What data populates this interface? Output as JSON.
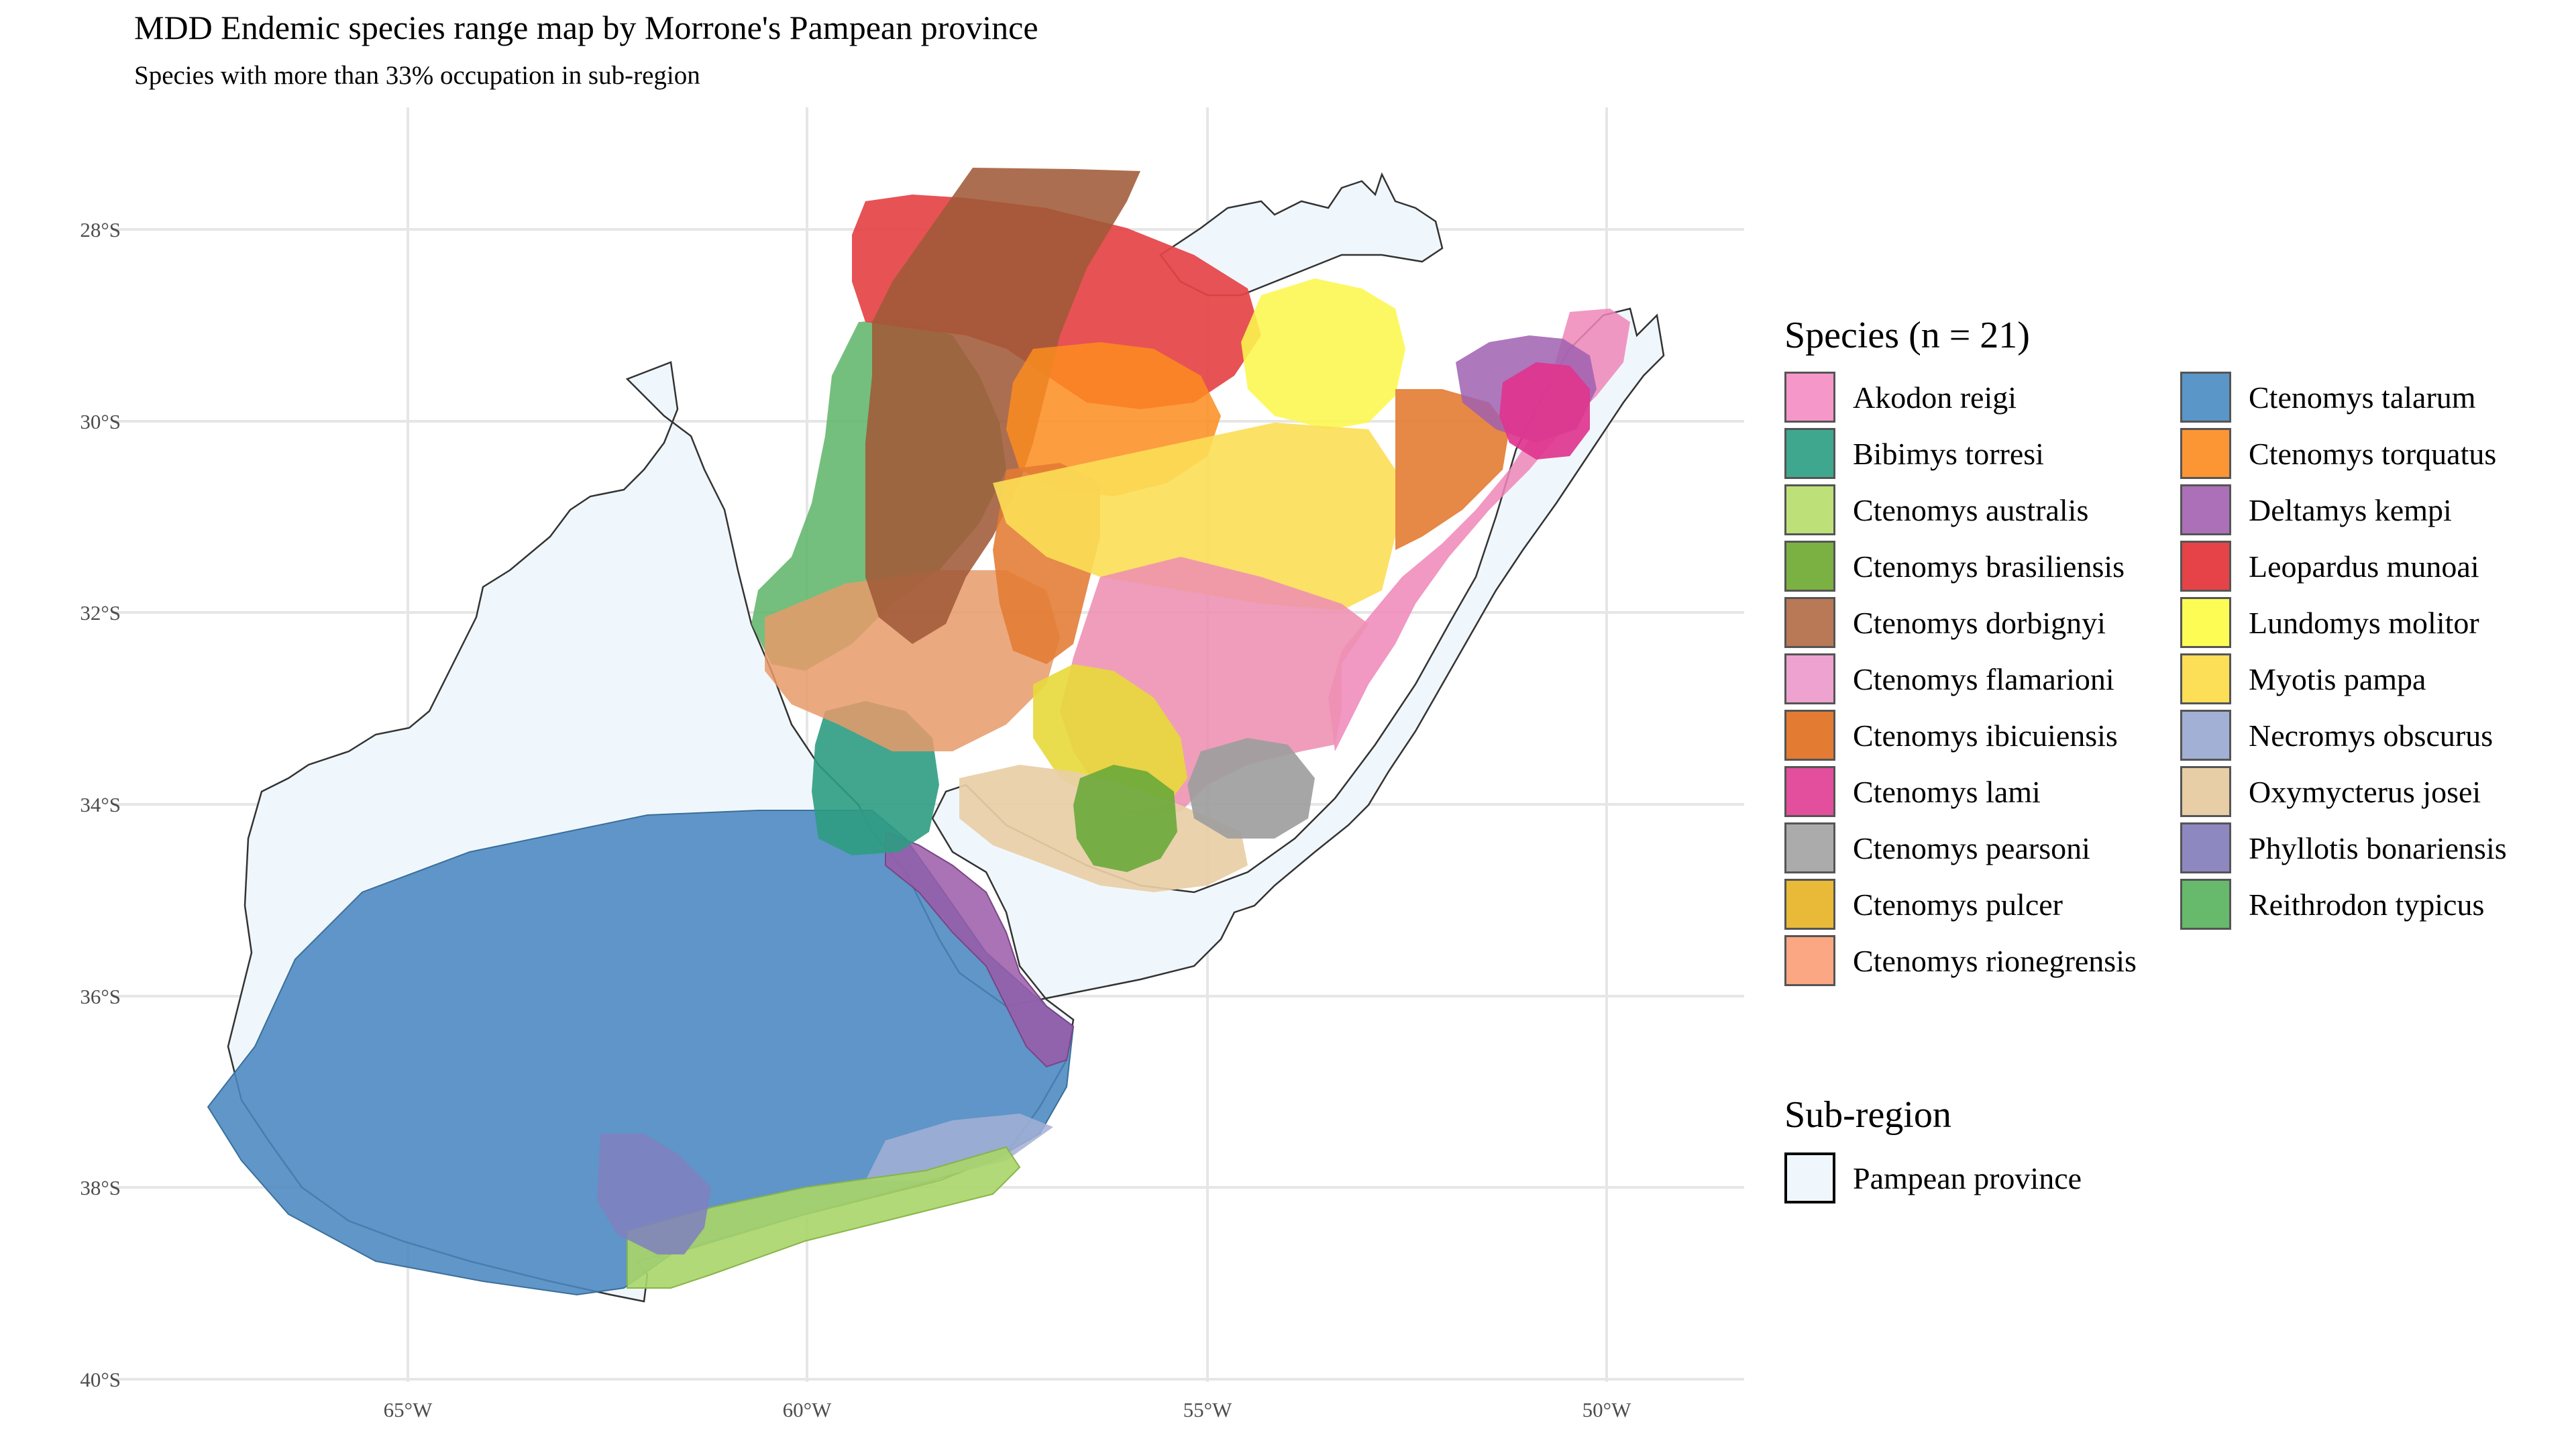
{
  "title": "MDD Endemic species range map by Morrone's Pampean province",
  "subtitle": "Species with more than 33% occupation in sub-region",
  "map": {
    "lat_axis": {
      "labels": [
        "28°S",
        "30°S",
        "32°S",
        "34°S",
        "36°S",
        "38°S",
        "40°S"
      ],
      "values": [
        -28,
        -30,
        -32,
        -34,
        -36,
        -38,
        -40
      ]
    },
    "lon_axis": {
      "labels": [
        "65°W",
        "60°W",
        "55°W",
        "50°W"
      ],
      "values": [
        -65,
        -60,
        -55,
        -50
      ]
    },
    "lat_range": [
      -40,
      -27
    ],
    "lon_range": [
      -68.5,
      -48.3
    ],
    "grid": true
  },
  "legend": {
    "species_title": "Species (n = 21)",
    "species": [
      {
        "name": "Akodon reigi",
        "color": "#F598C9"
      },
      {
        "name": "Bibimys torresi",
        "color": "#3FA78E"
      },
      {
        "name": "Ctenomys australis",
        "color": "#BDE078"
      },
      {
        "name": "Ctenomys brasiliensis",
        "color": "#7BB143"
      },
      {
        "name": "Ctenomys dorbignyi",
        "color": "#B97956"
      },
      {
        "name": "Ctenomys flamarioni",
        "color": "#EDA2CF"
      },
      {
        "name": "Ctenomys ibicuiensis",
        "color": "#E37B32"
      },
      {
        "name": "Ctenomys lami",
        "color": "#E34E9D"
      },
      {
        "name": "Ctenomys pearsoni",
        "color": "#ABABAB"
      },
      {
        "name": "Ctenomys pulcer",
        "color": "#E8BA37"
      },
      {
        "name": "Ctenomys rionegrensis",
        "color": "#FCA783"
      },
      {
        "name": "Ctenomys talarum",
        "color": "#5A96C8"
      },
      {
        "name": "Ctenomys torquatus",
        "color": "#FC9533"
      },
      {
        "name": "Deltamys kempi",
        "color": "#AC70B8"
      },
      {
        "name": "Leopardus munoai",
        "color": "#E54347"
      },
      {
        "name": "Lundomys molitor",
        "color": "#FCFC55"
      },
      {
        "name": "Myotis pampa",
        "color": "#FCDE57"
      },
      {
        "name": "Necromys obscurus",
        "color": "#A3B0D5"
      },
      {
        "name": "Oxymycterus josei",
        "color": "#E8CEA6"
      },
      {
        "name": "Phyllotis bonariensis",
        "color": "#8E88C1"
      },
      {
        "name": "Reithrodon typicus",
        "color": "#67B96B"
      }
    ],
    "subregion_title": "Sub-region",
    "subregion": {
      "name": "Pampean province",
      "color": "#F0F7FC"
    }
  }
}
